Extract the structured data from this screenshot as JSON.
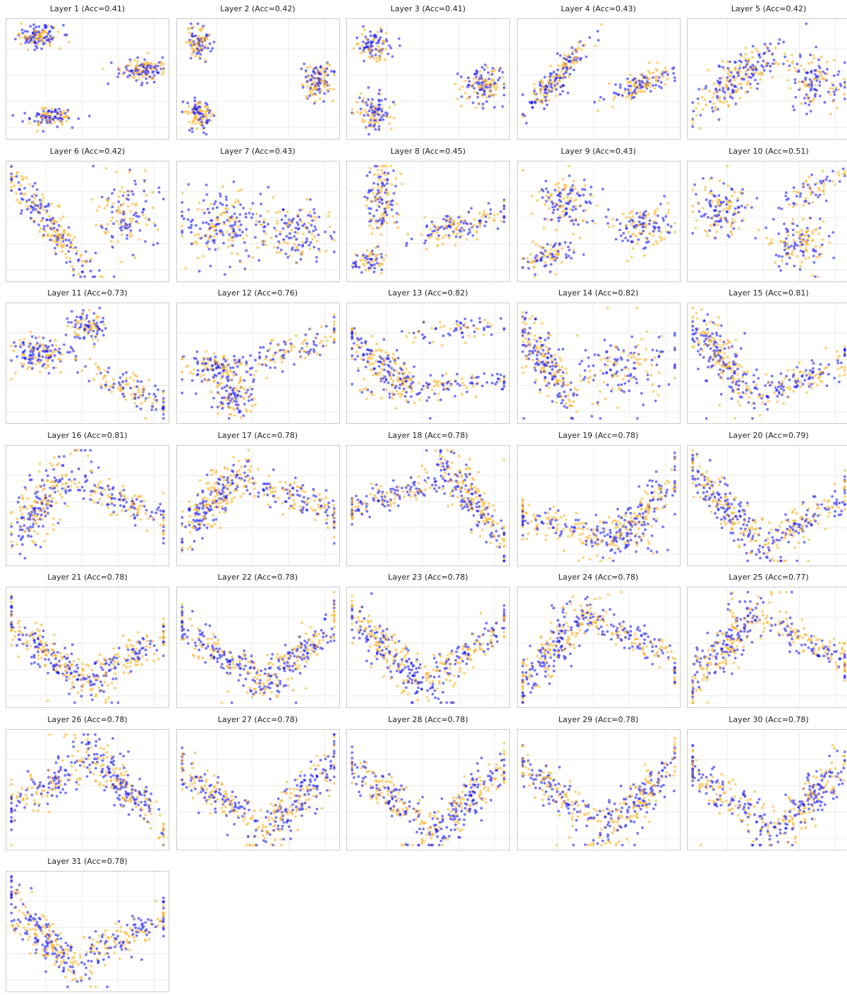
{
  "colors": {
    "class_a": "#1a1aff",
    "class_b": "#ffb020"
  },
  "chart_data": [
    {
      "type": "scatter",
      "title": "Layer 1 (Acc=0.41)",
      "xlabel": "",
      "ylabel": "",
      "grid": true,
      "clusters": [
        {
          "cx": 0.18,
          "cy": 0.88,
          "sx": 0.07,
          "sy": 0.05,
          "r": 0,
          "n": 140
        },
        {
          "cx": 0.85,
          "cy": 0.58,
          "sx": 0.07,
          "sy": 0.05,
          "r": 0.2,
          "n": 140
        },
        {
          "cx": 0.25,
          "cy": 0.16,
          "sx": 0.08,
          "sy": 0.04,
          "r": 0.1,
          "n": 110
        }
      ]
    },
    {
      "type": "scatter",
      "title": "Layer 2 (Acc=0.42)",
      "xlabel": "",
      "ylabel": "",
      "grid": true,
      "clusters": [
        {
          "cx": 0.12,
          "cy": 0.82,
          "sx": 0.04,
          "sy": 0.08,
          "r": 0,
          "n": 100
        },
        {
          "cx": 0.88,
          "cy": 0.48,
          "sx": 0.05,
          "sy": 0.08,
          "r": 0,
          "n": 130
        },
        {
          "cx": 0.12,
          "cy": 0.18,
          "sx": 0.04,
          "sy": 0.07,
          "r": 0,
          "n": 110
        }
      ]
    },
    {
      "type": "scatter",
      "title": "Layer 3 (Acc=0.41)",
      "xlabel": "",
      "ylabel": "",
      "grid": true,
      "clusters": [
        {
          "cx": 0.15,
          "cy": 0.8,
          "sx": 0.05,
          "sy": 0.08,
          "r": 0,
          "n": 100
        },
        {
          "cx": 0.85,
          "cy": 0.45,
          "sx": 0.07,
          "sy": 0.08,
          "r": 0,
          "n": 140
        },
        {
          "cx": 0.15,
          "cy": 0.2,
          "sx": 0.06,
          "sy": 0.08,
          "r": 0,
          "n": 110
        }
      ]
    },
    {
      "type": "scatter",
      "title": "Layer 4 (Acc=0.43)",
      "xlabel": "",
      "ylabel": "",
      "grid": true,
      "clusters": [
        {
          "cx": 0.22,
          "cy": 0.5,
          "sx": 0.2,
          "sy": 0.04,
          "r": 1.05,
          "n": 200
        },
        {
          "cx": 0.78,
          "cy": 0.45,
          "sx": 0.13,
          "sy": 0.05,
          "r": 0.5,
          "n": 140
        }
      ]
    },
    {
      "type": "scatter",
      "title": "Layer 5 (Acc=0.42)",
      "xlabel": "",
      "ylabel": "",
      "grid": true,
      "clusters": [
        {
          "cx": 0.3,
          "cy": 0.5,
          "sx": 0.2,
          "sy": 0.07,
          "r": 0.9,
          "n": 230
        },
        {
          "cx": 0.8,
          "cy": 0.48,
          "sx": 0.09,
          "sy": 0.13,
          "r": 0,
          "n": 140
        }
      ]
    },
    {
      "type": "scatter",
      "title": "Layer 6 (Acc=0.42)",
      "xlabel": "",
      "ylabel": "",
      "grid": true,
      "clusters": [
        {
          "cx": 0.25,
          "cy": 0.48,
          "sx": 0.3,
          "sy": 0.05,
          "r": -1.05,
          "n": 230
        },
        {
          "cx": 0.75,
          "cy": 0.58,
          "sx": 0.09,
          "sy": 0.16,
          "r": 0,
          "n": 140
        }
      ]
    },
    {
      "type": "scatter",
      "title": "Layer 7 (Acc=0.43)",
      "xlabel": "",
      "ylabel": "",
      "grid": true,
      "clusters": [
        {
          "cx": 0.3,
          "cy": 0.45,
          "sx": 0.16,
          "sy": 0.16,
          "r": 0.8,
          "n": 220
        },
        {
          "cx": 0.78,
          "cy": 0.4,
          "sx": 0.1,
          "sy": 0.12,
          "r": 0,
          "n": 130
        }
      ]
    },
    {
      "type": "scatter",
      "title": "Layer 8 (Acc=0.45)",
      "xlabel": "",
      "ylabel": "",
      "grid": true,
      "clusters": [
        {
          "cx": 0.2,
          "cy": 0.7,
          "sx": 0.05,
          "sy": 0.16,
          "r": 0,
          "n": 140
        },
        {
          "cx": 0.12,
          "cy": 0.15,
          "sx": 0.05,
          "sy": 0.05,
          "r": 0,
          "n": 70
        },
        {
          "cx": 0.7,
          "cy": 0.45,
          "sx": 0.18,
          "sy": 0.06,
          "r": 0.35,
          "n": 150
        }
      ]
    },
    {
      "type": "scatter",
      "title": "Layer 9 (Acc=0.43)",
      "xlabel": "",
      "ylabel": "",
      "grid": true,
      "clusters": [
        {
          "cx": 0.3,
          "cy": 0.7,
          "sx": 0.09,
          "sy": 0.12,
          "r": 0,
          "n": 140
        },
        {
          "cx": 0.18,
          "cy": 0.2,
          "sx": 0.1,
          "sy": 0.06,
          "r": 0.6,
          "n": 90
        },
        {
          "cx": 0.78,
          "cy": 0.45,
          "sx": 0.09,
          "sy": 0.1,
          "r": 0,
          "n": 130
        }
      ]
    },
    {
      "type": "scatter",
      "title": "Layer 10 (Acc=0.51)",
      "xlabel": "",
      "ylabel": "",
      "grid": true,
      "clusters": [
        {
          "cx": 0.2,
          "cy": 0.6,
          "sx": 0.09,
          "sy": 0.12,
          "r": 0,
          "n": 140
        },
        {
          "cx": 0.78,
          "cy": 0.78,
          "sx": 0.14,
          "sy": 0.06,
          "r": 0.6,
          "n": 70
        },
        {
          "cx": 0.7,
          "cy": 0.32,
          "sx": 0.09,
          "sy": 0.12,
          "r": 0,
          "n": 140
        }
      ]
    },
    {
      "type": "scatter",
      "title": "Layer 11 (Acc=0.73)",
      "xlabel": "",
      "ylabel": "",
      "grid": true,
      "clusters": [
        {
          "cx": 0.2,
          "cy": 0.58,
          "sx": 0.1,
          "sy": 0.08,
          "r": 0,
          "n": 150
        },
        {
          "cx": 0.5,
          "cy": 0.83,
          "sx": 0.06,
          "sy": 0.07,
          "r": 0,
          "n": 100
        },
        {
          "cx": 0.75,
          "cy": 0.28,
          "sx": 0.18,
          "sy": 0.06,
          "r": -0.6,
          "n": 120
        }
      ]
    },
    {
      "type": "scatter",
      "title": "Layer 12 (Acc=0.76)",
      "xlabel": "",
      "ylabel": "",
      "grid": true,
      "clusters": [
        {
          "cx": 0.23,
          "cy": 0.45,
          "sx": 0.1,
          "sy": 0.08,
          "r": 0,
          "n": 150
        },
        {
          "cx": 0.35,
          "cy": 0.18,
          "sx": 0.06,
          "sy": 0.08,
          "r": 0,
          "n": 100
        },
        {
          "cx": 0.72,
          "cy": 0.62,
          "sx": 0.2,
          "sy": 0.06,
          "r": 0.5,
          "n": 120
        }
      ]
    },
    {
      "type": "scatter",
      "title": "Layer 13 (Acc=0.82)",
      "xlabel": "",
      "ylabel": "",
      "grid": true,
      "clusters": [
        {
          "cx": 0.2,
          "cy": 0.5,
          "sx": 0.2,
          "sy": 0.06,
          "r": -0.9,
          "n": 200
        },
        {
          "cx": 0.6,
          "cy": 0.3,
          "sx": 0.25,
          "sy": 0.05,
          "r": 0.1,
          "n": 120
        },
        {
          "cx": 0.65,
          "cy": 0.8,
          "sx": 0.18,
          "sy": 0.05,
          "r": 0.15,
          "n": 70
        }
      ]
    },
    {
      "type": "scatter",
      "title": "Layer 14 (Acc=0.82)",
      "xlabel": "",
      "ylabel": "",
      "grid": true,
      "clusters": [
        {
          "cx": 0.16,
          "cy": 0.5,
          "sx": 0.22,
          "sy": 0.06,
          "r": -1.2,
          "n": 220
        },
        {
          "cx": 0.65,
          "cy": 0.45,
          "sx": 0.22,
          "sy": 0.16,
          "r": 0.3,
          "n": 170
        }
      ]
    },
    {
      "type": "scatter",
      "title": "Layer 15 (Acc=0.81)",
      "xlabel": "",
      "ylabel": "",
      "grid": true,
      "clusters": [
        {
          "cx": 0.2,
          "cy": 0.55,
          "sx": 0.22,
          "sy": 0.06,
          "r": -1.1,
          "n": 230
        },
        {
          "cx": 0.7,
          "cy": 0.35,
          "sx": 0.25,
          "sy": 0.06,
          "r": 0.5,
          "n": 160
        }
      ]
    },
    {
      "type": "scatter",
      "title": "Layer 16 (Acc=0.81)",
      "xlabel": "",
      "ylabel": "",
      "grid": true,
      "clusters": [
        {
          "cx": 0.2,
          "cy": 0.5,
          "sx": 0.22,
          "sy": 0.07,
          "r": 1.1,
          "n": 220
        },
        {
          "cx": 0.7,
          "cy": 0.55,
          "sx": 0.22,
          "sy": 0.07,
          "r": -0.5,
          "n": 160
        }
      ]
    },
    {
      "type": "scatter",
      "title": "Layer 17 (Acc=0.78)",
      "xlabel": "",
      "ylabel": "",
      "grid": true,
      "clusters": [
        {
          "cx": 0.22,
          "cy": 0.55,
          "sx": 0.22,
          "sy": 0.06,
          "r": 1.05,
          "n": 230
        },
        {
          "cx": 0.7,
          "cy": 0.6,
          "sx": 0.25,
          "sy": 0.06,
          "r": -0.5,
          "n": 170
        }
      ]
    },
    {
      "type": "scatter",
      "title": "Layer 18 (Acc=0.78)",
      "xlabel": "",
      "ylabel": "",
      "grid": true,
      "clusters": [
        {
          "cx": 0.3,
          "cy": 0.6,
          "sx": 0.25,
          "sy": 0.06,
          "r": 0.4,
          "n": 170
        },
        {
          "cx": 0.78,
          "cy": 0.55,
          "sx": 0.25,
          "sy": 0.06,
          "r": -1.1,
          "n": 230
        }
      ]
    },
    {
      "type": "scatter",
      "title": "Layer 19 (Acc=0.78)",
      "xlabel": "",
      "ylabel": "",
      "grid": true,
      "clusters": [
        {
          "cx": 0.3,
          "cy": 0.3,
          "sx": 0.28,
          "sy": 0.07,
          "r": -0.3,
          "n": 180
        },
        {
          "cx": 0.75,
          "cy": 0.4,
          "sx": 0.25,
          "sy": 0.06,
          "r": 0.95,
          "n": 220
        }
      ]
    },
    {
      "type": "scatter",
      "title": "Layer 20 (Acc=0.79)",
      "xlabel": "",
      "ylabel": "",
      "grid": true,
      "clusters": [
        {
          "cx": 0.25,
          "cy": 0.45,
          "sx": 0.25,
          "sy": 0.06,
          "r": -1.0,
          "n": 230
        },
        {
          "cx": 0.72,
          "cy": 0.35,
          "sx": 0.25,
          "sy": 0.06,
          "r": 0.65,
          "n": 170
        }
      ]
    },
    {
      "type": "scatter",
      "title": "Layer 21 (Acc=0.78)",
      "xlabel": "",
      "ylabel": "",
      "grid": true,
      "clusters": [
        {
          "cx": 0.25,
          "cy": 0.45,
          "sx": 0.25,
          "sy": 0.06,
          "r": -0.85,
          "n": 230
        },
        {
          "cx": 0.75,
          "cy": 0.4,
          "sx": 0.25,
          "sy": 0.06,
          "r": 0.7,
          "n": 170
        }
      ]
    },
    {
      "type": "scatter",
      "title": "Layer 22 (Acc=0.78)",
      "xlabel": "",
      "ylabel": "",
      "grid": true,
      "clusters": [
        {
          "cx": 0.25,
          "cy": 0.45,
          "sx": 0.25,
          "sy": 0.06,
          "r": -0.7,
          "n": 180
        },
        {
          "cx": 0.75,
          "cy": 0.42,
          "sx": 0.25,
          "sy": 0.06,
          "r": 0.85,
          "n": 220
        }
      ]
    },
    {
      "type": "scatter",
      "title": "Layer 23 (Acc=0.78)",
      "xlabel": "",
      "ylabel": "",
      "grid": true,
      "clusters": [
        {
          "cx": 0.25,
          "cy": 0.45,
          "sx": 0.25,
          "sy": 0.06,
          "r": -0.95,
          "n": 230
        },
        {
          "cx": 0.72,
          "cy": 0.42,
          "sx": 0.25,
          "sy": 0.06,
          "r": 0.75,
          "n": 170
        }
      ]
    },
    {
      "type": "scatter",
      "title": "Layer 24 (Acc=0.78)",
      "xlabel": "",
      "ylabel": "",
      "grid": true,
      "clusters": [
        {
          "cx": 0.22,
          "cy": 0.5,
          "sx": 0.25,
          "sy": 0.06,
          "r": 1.0,
          "n": 230
        },
        {
          "cx": 0.72,
          "cy": 0.58,
          "sx": 0.25,
          "sy": 0.06,
          "r": -0.6,
          "n": 170
        }
      ]
    },
    {
      "type": "scatter",
      "title": "Layer 25 (Acc=0.77)",
      "xlabel": "",
      "ylabel": "",
      "grid": true,
      "clusters": [
        {
          "cx": 0.22,
          "cy": 0.5,
          "sx": 0.25,
          "sy": 0.06,
          "r": 1.0,
          "n": 230
        },
        {
          "cx": 0.72,
          "cy": 0.58,
          "sx": 0.25,
          "sy": 0.06,
          "r": -0.6,
          "n": 170
        }
      ]
    },
    {
      "type": "scatter",
      "title": "Layer 26 (Acc=0.78)",
      "xlabel": "",
      "ylabel": "",
      "grid": true,
      "clusters": [
        {
          "cx": 0.25,
          "cy": 0.55,
          "sx": 0.25,
          "sy": 0.07,
          "r": 0.7,
          "n": 170
        },
        {
          "cx": 0.72,
          "cy": 0.55,
          "sx": 0.25,
          "sy": 0.06,
          "r": -1.0,
          "n": 230
        }
      ]
    },
    {
      "type": "scatter",
      "title": "Layer 27 (Acc=0.78)",
      "xlabel": "",
      "ylabel": "",
      "grid": true,
      "clusters": [
        {
          "cx": 0.25,
          "cy": 0.45,
          "sx": 0.25,
          "sy": 0.06,
          "r": -0.8,
          "n": 180
        },
        {
          "cx": 0.75,
          "cy": 0.4,
          "sx": 0.25,
          "sy": 0.06,
          "r": 1.0,
          "n": 220
        }
      ]
    },
    {
      "type": "scatter",
      "title": "Layer 28 (Acc=0.78)",
      "xlabel": "",
      "ylabel": "",
      "grid": true,
      "clusters": [
        {
          "cx": 0.25,
          "cy": 0.45,
          "sx": 0.25,
          "sy": 0.06,
          "r": -0.8,
          "n": 180
        },
        {
          "cx": 0.75,
          "cy": 0.4,
          "sx": 0.25,
          "sy": 0.06,
          "r": 0.95,
          "n": 220
        }
      ]
    },
    {
      "type": "scatter",
      "title": "Layer 29 (Acc=0.78)",
      "xlabel": "",
      "ylabel": "",
      "grid": true,
      "clusters": [
        {
          "cx": 0.25,
          "cy": 0.45,
          "sx": 0.25,
          "sy": 0.06,
          "r": -0.8,
          "n": 180
        },
        {
          "cx": 0.75,
          "cy": 0.4,
          "sx": 0.25,
          "sy": 0.06,
          "r": 0.95,
          "n": 220
        }
      ]
    },
    {
      "type": "scatter",
      "title": "Layer 30 (Acc=0.78)",
      "xlabel": "",
      "ylabel": "",
      "grid": true,
      "clusters": [
        {
          "cx": 0.22,
          "cy": 0.45,
          "sx": 0.25,
          "sy": 0.06,
          "r": -0.8,
          "n": 180
        },
        {
          "cx": 0.75,
          "cy": 0.4,
          "sx": 0.25,
          "sy": 0.06,
          "r": 1.0,
          "n": 220
        }
      ]
    },
    {
      "type": "scatter",
      "title": "Layer 31 (Acc=0.78)",
      "xlabel": "",
      "ylabel": "",
      "grid": true,
      "clusters": [
        {
          "cx": 0.22,
          "cy": 0.45,
          "sx": 0.25,
          "sy": 0.06,
          "r": -1.0,
          "n": 230
        },
        {
          "cx": 0.72,
          "cy": 0.45,
          "sx": 0.25,
          "sy": 0.07,
          "r": 0.5,
          "n": 170
        }
      ]
    }
  ]
}
